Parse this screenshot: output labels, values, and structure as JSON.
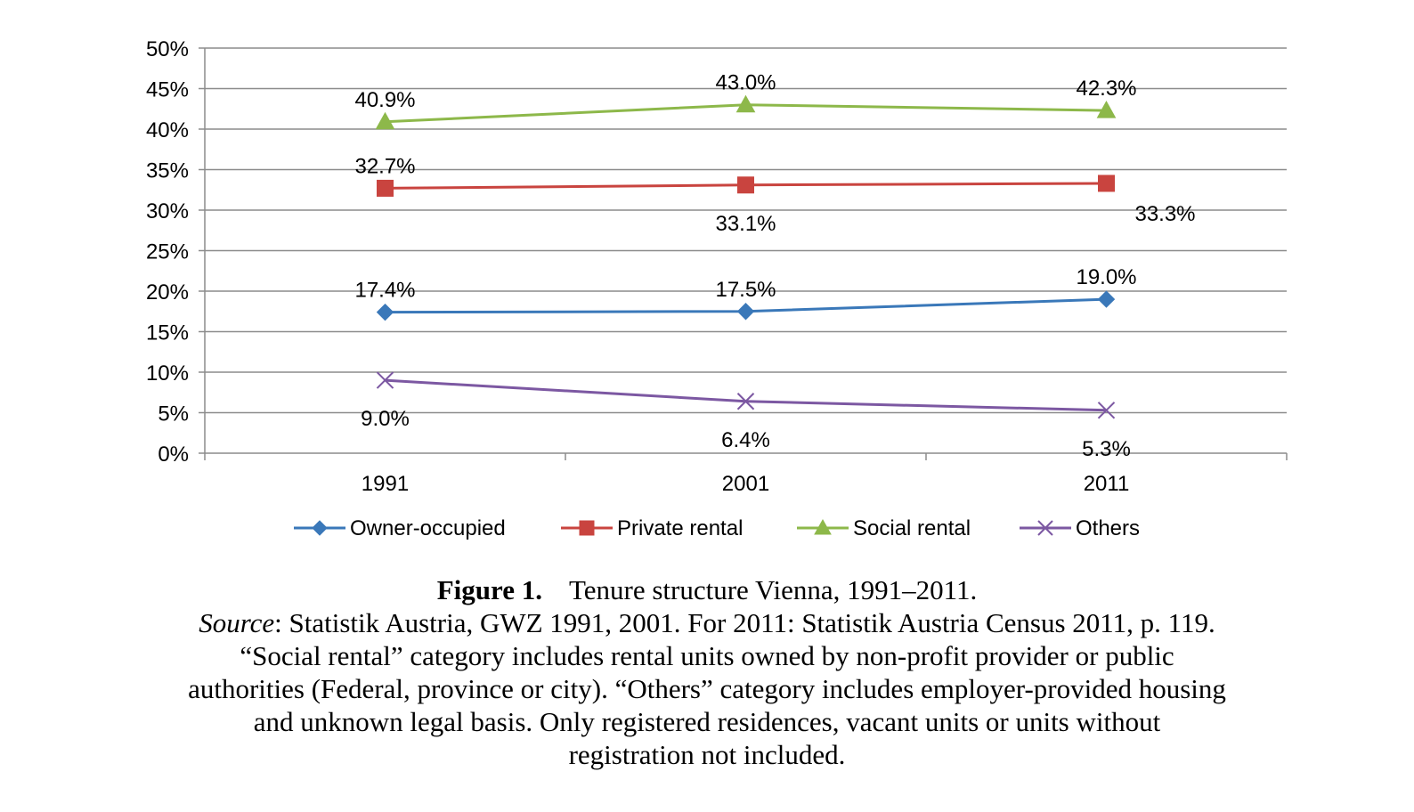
{
  "chart_data": {
    "type": "line",
    "categories": [
      "1991",
      "2001",
      "2011"
    ],
    "y_ticks": [
      "0%",
      "5%",
      "10%",
      "15%",
      "20%",
      "25%",
      "30%",
      "35%",
      "40%",
      "45%",
      "50%"
    ],
    "ylim": [
      0,
      50
    ],
    "grid": true,
    "legend_position": "bottom",
    "series": [
      {
        "name": "Owner-occupied",
        "values": [
          17.4,
          17.5,
          19.0
        ],
        "labels": [
          "17.4%",
          "17.5%",
          "19.0%"
        ],
        "color": "#3a78b9",
        "marker": "diamond",
        "label_pos": [
          "above",
          "above",
          "above"
        ]
      },
      {
        "name": "Private rental",
        "values": [
          32.7,
          33.1,
          33.3
        ],
        "labels": [
          "32.7%",
          "33.1%",
          "33.3%"
        ],
        "color": "#c9443f",
        "marker": "square",
        "label_pos": [
          "above",
          "below",
          "below-right"
        ]
      },
      {
        "name": "Social rental",
        "values": [
          40.9,
          43.0,
          42.3
        ],
        "labels": [
          "40.9%",
          "43.0%",
          "42.3%"
        ],
        "color": "#8db84a",
        "marker": "triangle",
        "label_pos": [
          "above",
          "above",
          "above"
        ]
      },
      {
        "name": "Others",
        "values": [
          9.0,
          6.4,
          5.3
        ],
        "labels": [
          "9.0%",
          "6.4%",
          "5.3%"
        ],
        "color": "#7c58a2",
        "marker": "x",
        "label_pos": [
          "below",
          "below",
          "below"
        ]
      }
    ]
  },
  "caption": {
    "figure_label": "Figure 1.",
    "title": "Tenure structure Vienna, 1991–2011.",
    "source_label": "Source",
    "source_text": ": Statistik Austria, GWZ 1991, 2001. For 2011: Statistik Austria Census 2011, p. 119.",
    "note_line1": "“Social rental” category includes rental units owned by non-profit provider or public",
    "note_line2": "authorities (Federal, province or city). “Others” category includes employer-provided housing",
    "note_line3": "and unknown legal basis. Only registered residences, vacant units or units without",
    "note_line4": "registration not included."
  }
}
